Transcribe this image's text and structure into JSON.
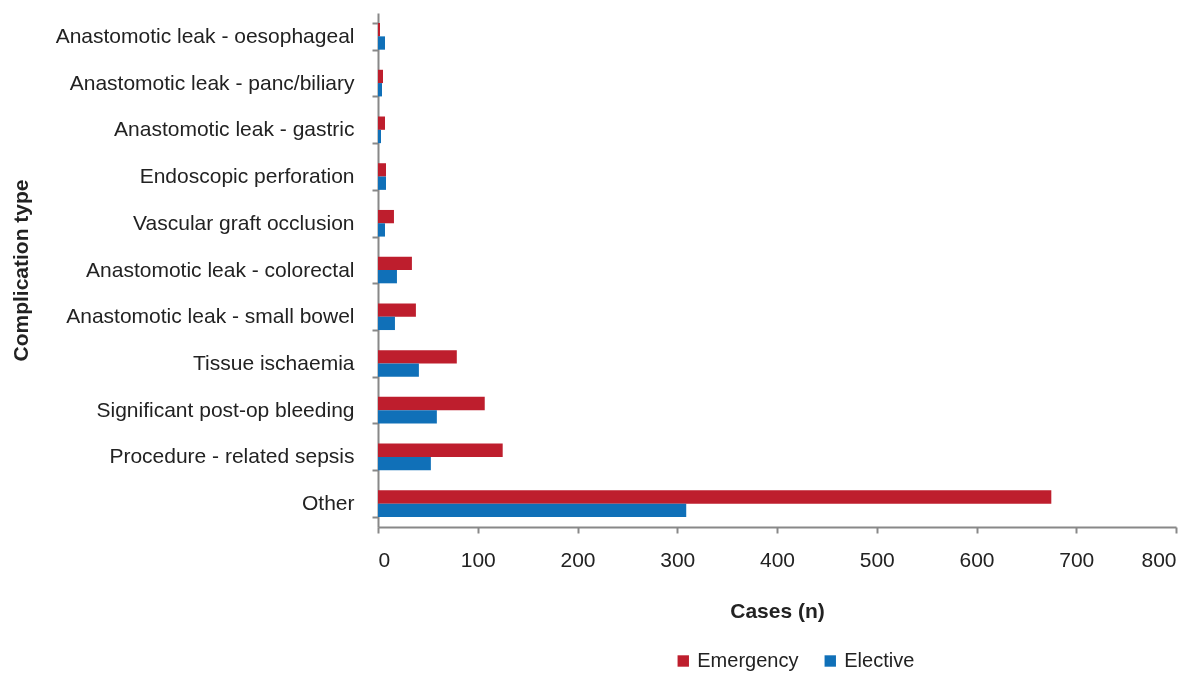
{
  "chart_data": {
    "type": "bar",
    "orientation": "horizontal",
    "xlabel": "Cases (n)",
    "ylabel": "Complication type",
    "categories": [
      "Anastomotic leak - oesophageal",
      "Anastomotic leak - panc/biliary",
      "Anastomotic leak - gastric",
      "Endoscopic perforation",
      "Vascular graft occlusion",
      "Anastomotic leak - colorectal",
      "Anastomotic leak - small bowel",
      "Tissue ischaemia",
      "Significant post-op bleeding",
      "Procedure - related sepsis",
      "Other"
    ],
    "series": [
      {
        "name": "Emergency",
        "color": "#be1e2d",
        "values": [
          2,
          5,
          7,
          8,
          16,
          34,
          38,
          79,
          107,
          125,
          675
        ]
      },
      {
        "name": "Elective",
        "color": "#1070b8",
        "values": [
          7,
          4,
          3,
          8,
          7,
          19,
          17,
          41,
          59,
          53,
          309
        ]
      }
    ],
    "xlim": [
      0,
      800
    ],
    "xticks": [
      0,
      100,
      200,
      300,
      400,
      500,
      600,
      700,
      800
    ],
    "grid": false,
    "legend": "bottom"
  }
}
